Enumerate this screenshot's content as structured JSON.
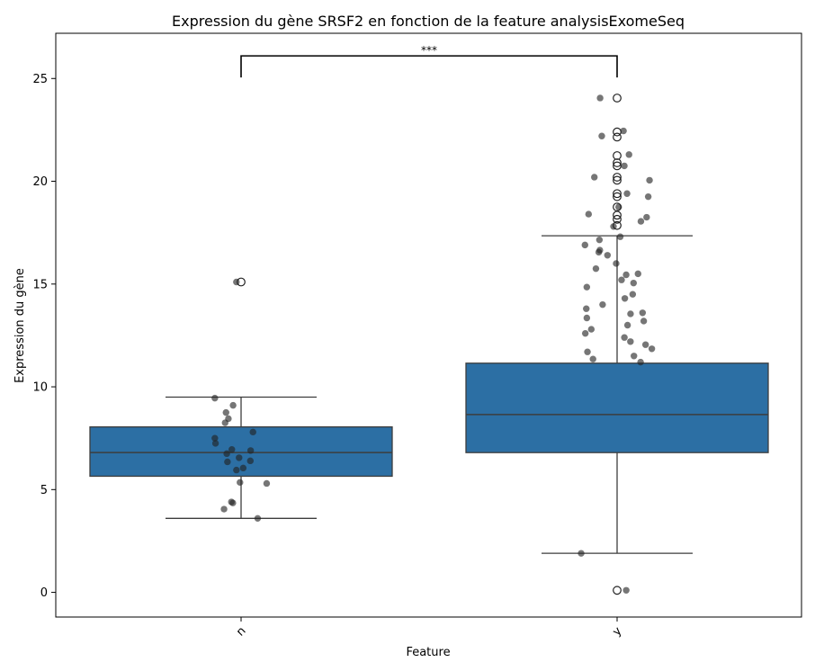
{
  "chart_data": {
    "type": "box",
    "title": "Expression du gène SRSF2 en fonction de la feature analysisExomeSeq",
    "xlabel": "Feature",
    "ylabel": "Expression du gène",
    "categories": [
      "n",
      "y"
    ],
    "ylim": [
      -1.2,
      27.2
    ],
    "yticks": [
      0,
      5,
      10,
      15,
      20,
      25
    ],
    "grid": false,
    "box_color": "#2c6fa4",
    "point_color": "#222222",
    "boxes": [
      {
        "category": "n",
        "q1": 5.65,
        "median": 6.8,
        "q3": 8.05,
        "whisker_low": 3.6,
        "whisker_high": 9.5,
        "outliers": [
          15.1
        ]
      },
      {
        "category": "y",
        "q1": 6.8,
        "median": 8.65,
        "q3": 11.15,
        "whisker_low": 1.9,
        "whisker_high": 17.35,
        "outliers": [
          24.05,
          22.4,
          22.15,
          21.25,
          20.9,
          20.75,
          20.2,
          20.05,
          19.4,
          19.25,
          18.75,
          18.35,
          18.15,
          17.85,
          0.1
        ]
      }
    ],
    "points": {
      "n": [
        15.1,
        9.45,
        9.1,
        8.75,
        8.45,
        8.25,
        7.8,
        7.5,
        7.25,
        6.95,
        6.9,
        6.75,
        6.55,
        6.4,
        6.35,
        6.05,
        5.95,
        5.35,
        5.3,
        4.4,
        4.35,
        4.05,
        3.6
      ],
      "y": [
        24.05,
        22.45,
        22.2,
        21.3,
        20.75,
        20.2,
        20.05,
        19.4,
        19.25,
        18.75,
        18.4,
        18.25,
        18.05,
        17.8,
        17.3,
        17.15,
        16.9,
        16.65,
        16.55,
        16.4,
        16.0,
        15.75,
        15.5,
        15.45,
        15.2,
        15.05,
        14.85,
        14.5,
        14.3,
        14.0,
        13.8,
        13.6,
        13.55,
        13.35,
        13.2,
        13.0,
        12.8,
        12.6,
        12.4,
        12.2,
        12.05,
        11.85,
        11.7,
        11.5,
        11.35,
        11.2,
        1.9,
        0.1
      ]
    },
    "annotation": "***"
  }
}
